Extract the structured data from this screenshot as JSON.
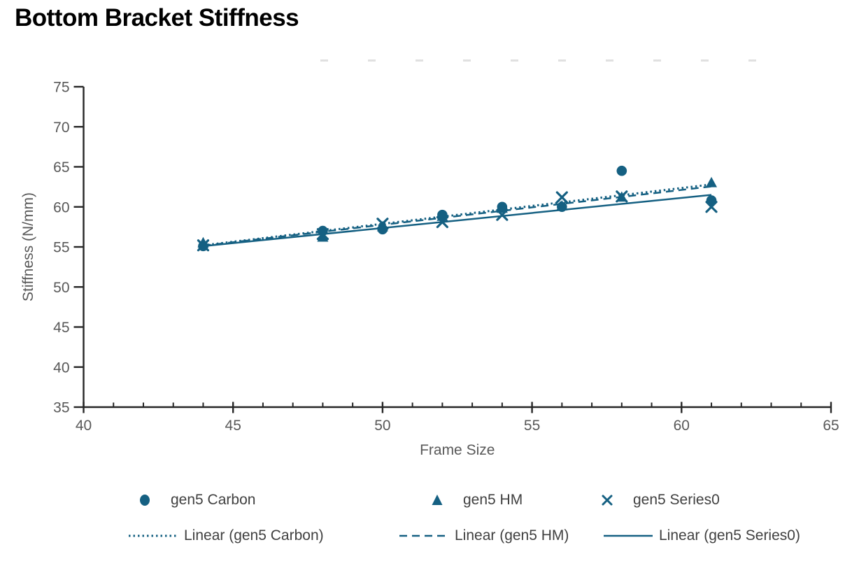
{
  "page": {
    "title": "Bottom Bracket Stiffness"
  },
  "chart_data": {
    "type": "scatter",
    "title": "Bottom Bracket Stiffness",
    "xlabel": "Frame Size",
    "ylabel": "Stiffness (N/mm)",
    "xlim": [
      40,
      65
    ],
    "ylim": [
      35,
      75
    ],
    "x_ticks": [
      40,
      45,
      50,
      55,
      60,
      65
    ],
    "x_minor_step": 1,
    "y_ticks": [
      35,
      40,
      45,
      50,
      55,
      60,
      65,
      70,
      75
    ],
    "grid": false,
    "legend_position": "bottom",
    "categories_x": [
      44,
      48,
      50,
      52,
      54,
      56,
      58,
      61
    ],
    "series": [
      {
        "name": "gen5 Carbon",
        "marker": "circle",
        "x": [
          44,
          48,
          50,
          52,
          54,
          56,
          58,
          61
        ],
        "y": [
          55.1,
          57.0,
          57.2,
          59.0,
          60.0,
          60.0,
          64.5,
          60.8
        ]
      },
      {
        "name": "gen5 HM",
        "marker": "triangle",
        "x": [
          44,
          48,
          50,
          52,
          54,
          56,
          58,
          61
        ],
        "y": [
          55.5,
          56.2,
          57.5,
          58.8,
          59.8,
          60.1,
          61.2,
          63.0
        ]
      },
      {
        "name": "gen5 Series0",
        "marker": "x",
        "x": [
          44,
          48,
          50,
          52,
          54,
          56,
          58,
          61
        ],
        "y": [
          55.2,
          56.6,
          57.9,
          58.1,
          59.0,
          61.2,
          61.3,
          60.0
        ]
      }
    ],
    "trendlines": [
      {
        "name": "Linear (gen5 Carbon)",
        "style": "dotted",
        "x1": 44,
        "y1": 55.2,
        "x2": 61,
        "y2": 62.8
      },
      {
        "name": "Linear (gen5 HM)",
        "style": "dashed",
        "x1": 44,
        "y1": 55.15,
        "x2": 61,
        "y2": 62.55
      },
      {
        "name": "Linear (gen5 Series0)",
        "style": "solid",
        "x1": 44,
        "y1": 55.1,
        "x2": 61,
        "y2": 61.5
      }
    ],
    "colors": {
      "series": "#156082",
      "axis": "#262626",
      "tick_label": "#595959",
      "axis_label": "#595959",
      "legend_text": "#404040"
    }
  },
  "legend": {
    "markers": [
      {
        "label": "gen5 Carbon",
        "marker": "circle"
      },
      {
        "label": "gen5 HM",
        "marker": "triangle"
      },
      {
        "label": "gen5 Series0",
        "marker": "x"
      }
    ],
    "lines": [
      {
        "label": "Linear (gen5 Carbon)",
        "style": "dotted"
      },
      {
        "label": "Linear (gen5 HM)",
        "style": "dashed"
      },
      {
        "label": "Linear (gen5 Series0)",
        "style": "solid"
      }
    ]
  }
}
